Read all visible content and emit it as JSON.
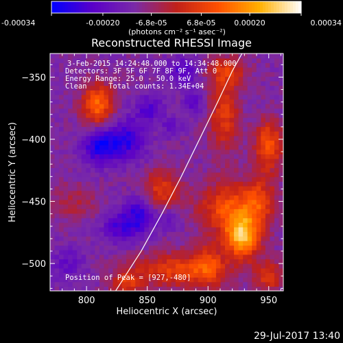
{
  "chart_data": {
    "type": "heatmap",
    "title": "Reconstructed RHESSI Image",
    "xlabel": "Heliocentric X (arcsec)",
    "ylabel": "Heliocentric Y (arcsec)",
    "xlim": [
      770,
      962
    ],
    "ylim": [
      -522,
      -331
    ],
    "x_ticks": [
      800,
      850,
      900,
      950
    ],
    "y_ticks": [
      -350,
      -400,
      -450,
      -500
    ],
    "colorbar": {
      "range": [
        -0.00034,
        0.00034
      ],
      "tick_values": [
        -0.00034,
        -0.0002,
        -6.8e-05,
        6.8e-05,
        0.0002,
        0.00034
      ],
      "tick_labels": [
        "-0.00034",
        "-0.00020",
        "-6.8e-05",
        "6.8e-05",
        "0.00020",
        "0.00034"
      ],
      "units": "(photons cm⁻² s⁻¹ asec⁻²)",
      "colors": [
        "#0000ff",
        "#5a00c8",
        "#7a2aa8",
        "#c0201a",
        "#ff5000",
        "#ffb000",
        "#ffffff"
      ]
    },
    "annotations": {
      "time": "3-Feb-2015 14:24:48.000 to 14:34:48.000",
      "detectors": "Detectors: 3F 5F 6F 7F 8F 9F, Att 0",
      "energy": "Energy Range: 25.0 - 50.0 keV",
      "clean": "Clean     Total counts: 1.34E+04",
      "peak": "Position of Peak = [927,-480]"
    },
    "limb_curve": [
      [
        824,
        -522
      ],
      [
        845,
        -490
      ],
      [
        862,
        -460
      ],
      [
        878,
        -430
      ],
      [
        893,
        -400
      ],
      [
        908,
        -370
      ],
      [
        920,
        -345
      ],
      [
        928,
        -331
      ]
    ],
    "sources": [
      {
        "x": 809,
        "y": -372,
        "intensity": 0.00024,
        "sx": 9,
        "sy": 12
      },
      {
        "x": 862,
        "y": -440,
        "intensity": 0.00016,
        "sx": 11,
        "sy": 11
      },
      {
        "x": 928,
        "y": -478,
        "intensity": 0.00033,
        "sx": 10,
        "sy": 12
      },
      {
        "x": 915,
        "y": -455,
        "intensity": 0.0002,
        "sx": 16,
        "sy": 14
      },
      {
        "x": 942,
        "y": -450,
        "intensity": 0.00017,
        "sx": 10,
        "sy": 14
      },
      {
        "x": 950,
        "y": -405,
        "intensity": 0.00022,
        "sx": 8,
        "sy": 14
      },
      {
        "x": 913,
        "y": -380,
        "intensity": 0.00016,
        "sx": 9,
        "sy": 22
      },
      {
        "x": 915,
        "y": -345,
        "intensity": 0.00014,
        "sx": 12,
        "sy": 8
      },
      {
        "x": 878,
        "y": -505,
        "intensity": 0.00018,
        "sx": 28,
        "sy": 10
      },
      {
        "x": 833,
        "y": -515,
        "intensity": 0.00014,
        "sx": 9,
        "sy": 7
      },
      {
        "x": 950,
        "y": -510,
        "intensity": 0.00015,
        "sx": 8,
        "sy": 9
      },
      {
        "x": 900,
        "y": -500,
        "intensity": 0.00012,
        "sx": 8,
        "sy": 12
      },
      {
        "x": 790,
        "y": -450,
        "intensity": 8e-05,
        "sx": 14,
        "sy": 10
      },
      {
        "x": 812,
        "y": -405,
        "intensity": -0.00022,
        "sx": 10,
        "sy": 10
      },
      {
        "x": 835,
        "y": -400,
        "intensity": -0.00016,
        "sx": 10,
        "sy": 12
      },
      {
        "x": 852,
        "y": -375,
        "intensity": -0.00012,
        "sx": 8,
        "sy": 8
      },
      {
        "x": 845,
        "y": -460,
        "intensity": -0.00016,
        "sx": 8,
        "sy": 10
      },
      {
        "x": 828,
        "y": -470,
        "intensity": -0.00014,
        "sx": 10,
        "sy": 10
      },
      {
        "x": 880,
        "y": -345,
        "intensity": -0.00012,
        "sx": 10,
        "sy": 8
      },
      {
        "x": 888,
        "y": -370,
        "intensity": -0.00012,
        "sx": 6,
        "sy": 6
      },
      {
        "x": 870,
        "y": -390,
        "intensity": -8e-05,
        "sx": 6,
        "sy": 6
      },
      {
        "x": 785,
        "y": -500,
        "intensity": -8e-05,
        "sx": 10,
        "sy": 10
      },
      {
        "x": 868,
        "y": -465,
        "intensity": -8e-05,
        "sx": 6,
        "sy": 6
      }
    ]
  },
  "footer": {
    "date": "29-Jul-2017 13:40"
  }
}
